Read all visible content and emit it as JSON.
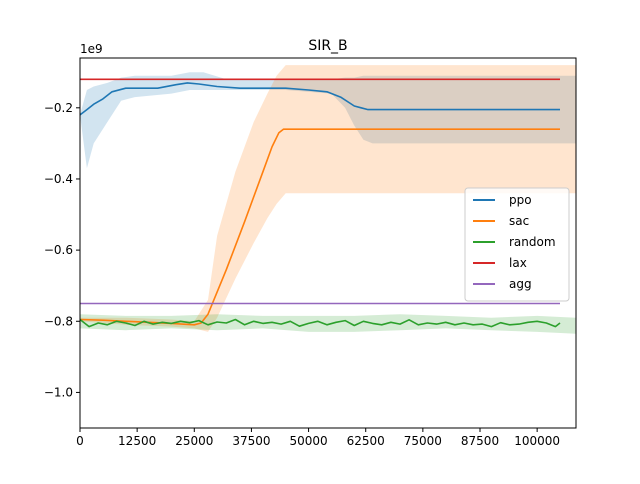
{
  "chart_data": {
    "type": "line",
    "title": "SIR_B",
    "xlabel": "",
    "ylabel": "",
    "y_offset_label": "1e9",
    "y_scale_factor": 1000000000,
    "xlim": [
      0,
      108500
    ],
    "ylim": [
      -1.1,
      -0.06
    ],
    "x_ticks": [
      0,
      12500,
      25000,
      37500,
      50000,
      62500,
      75000,
      87500,
      100000
    ],
    "x_tick_labels": [
      "0",
      "12500",
      "25000",
      "37500",
      "50000",
      "62500",
      "75000",
      "87500",
      "100000"
    ],
    "y_ticks": [
      -1.0,
      -0.8,
      -0.6,
      -0.4,
      -0.2
    ],
    "y_tick_labels": [
      "−1.0",
      "−0.8",
      "−0.6",
      "−0.4",
      "−0.2"
    ],
    "grid": false,
    "legend_position": "center-right",
    "series": [
      {
        "name": "ppo",
        "color": "#1f77b4",
        "x": [
          0,
          1500,
          3000,
          5000,
          7000,
          10000,
          17000,
          21000,
          23500,
          26000,
          30000,
          35000,
          45000,
          50000,
          54000,
          57000,
          60000,
          61500,
          63000,
          80000,
          105000
        ],
        "y": [
          -0.22,
          -0.205,
          -0.19,
          -0.175,
          -0.155,
          -0.145,
          -0.145,
          -0.135,
          -0.13,
          -0.133,
          -0.14,
          -0.145,
          -0.145,
          -0.15,
          -0.155,
          -0.17,
          -0.195,
          -0.2,
          -0.205,
          -0.205,
          -0.205
        ],
        "band_x": [
          0,
          1500,
          3000,
          6000,
          9000,
          12000,
          20000,
          24000,
          27000,
          32000,
          45000,
          55000,
          58000,
          60000,
          62000,
          64000,
          108500
        ],
        "band_lower": [
          -0.22,
          -0.37,
          -0.3,
          -0.24,
          -0.18,
          -0.17,
          -0.16,
          -0.15,
          -0.15,
          -0.15,
          -0.15,
          -0.16,
          -0.2,
          -0.25,
          -0.29,
          -0.3,
          -0.3
        ],
        "band_upper": [
          -0.22,
          -0.15,
          -0.14,
          -0.13,
          -0.115,
          -0.11,
          -0.11,
          -0.1,
          -0.1,
          -0.12,
          -0.12,
          -0.12,
          -0.115,
          -0.115,
          -0.11,
          -0.11,
          -0.11
        ]
      },
      {
        "name": "sac",
        "color": "#ff7f0e",
        "x": [
          0,
          5000,
          10000,
          15000,
          20000,
          25000,
          26500,
          28000,
          32000,
          36000,
          40000,
          42000,
          43500,
          44500,
          60000,
          80000,
          105000
        ],
        "y": [
          -0.795,
          -0.797,
          -0.8,
          -0.803,
          -0.806,
          -0.81,
          -0.805,
          -0.78,
          -0.655,
          -0.52,
          -0.38,
          -0.31,
          -0.27,
          -0.26,
          -0.26,
          -0.26,
          -0.26
        ],
        "band_x": [
          0,
          10000,
          20000,
          25000,
          28000,
          30000,
          34000,
          38000,
          41000,
          43000,
          45000,
          46000,
          50000,
          80000,
          108500
        ],
        "band_lower": [
          -0.8,
          -0.81,
          -0.815,
          -0.82,
          -0.83,
          -0.79,
          -0.68,
          -0.58,
          -0.51,
          -0.47,
          -0.44,
          -0.44,
          -0.44,
          -0.44,
          -0.44
        ],
        "band_upper": [
          -0.79,
          -0.79,
          -0.795,
          -0.8,
          -0.74,
          -0.56,
          -0.38,
          -0.24,
          -0.16,
          -0.11,
          -0.08,
          -0.08,
          -0.08,
          -0.08,
          -0.08
        ]
      },
      {
        "name": "random",
        "color": "#2ca02c",
        "x": [
          0,
          2000,
          4000,
          6000,
          8000,
          10000,
          12000,
          14000,
          16000,
          18000,
          20000,
          22000,
          24000,
          26000,
          28000,
          30000,
          32000,
          34000,
          36000,
          38000,
          40000,
          42000,
          44000,
          46000,
          48000,
          50000,
          52000,
          54000,
          56000,
          58000,
          60000,
          62000,
          64000,
          66000,
          68000,
          70000,
          72000,
          74000,
          76000,
          78000,
          80000,
          82000,
          84000,
          86000,
          88000,
          90000,
          92000,
          94000,
          96000,
          98000,
          100000,
          102000,
          104000,
          105000
        ],
        "y": [
          -0.795,
          -0.815,
          -0.805,
          -0.81,
          -0.8,
          -0.805,
          -0.812,
          -0.8,
          -0.808,
          -0.803,
          -0.806,
          -0.8,
          -0.804,
          -0.798,
          -0.81,
          -0.802,
          -0.805,
          -0.795,
          -0.81,
          -0.8,
          -0.806,
          -0.803,
          -0.808,
          -0.8,
          -0.814,
          -0.806,
          -0.8,
          -0.81,
          -0.803,
          -0.798,
          -0.812,
          -0.8,
          -0.806,
          -0.81,
          -0.803,
          -0.808,
          -0.796,
          -0.81,
          -0.805,
          -0.808,
          -0.803,
          -0.81,
          -0.805,
          -0.81,
          -0.808,
          -0.815,
          -0.804,
          -0.81,
          -0.808,
          -0.803,
          -0.8,
          -0.805,
          -0.815,
          -0.805
        ],
        "band_x": [
          0,
          10000,
          20000,
          30000,
          40000,
          50000,
          60000,
          70000,
          80000,
          90000,
          100000,
          108500
        ],
        "band_lower": [
          -0.82,
          -0.825,
          -0.82,
          -0.825,
          -0.82,
          -0.83,
          -0.83,
          -0.825,
          -0.82,
          -0.825,
          -0.83,
          -0.835
        ],
        "band_upper": [
          -0.78,
          -0.785,
          -0.785,
          -0.78,
          -0.785,
          -0.785,
          -0.785,
          -0.78,
          -0.785,
          -0.79,
          -0.785,
          -0.79
        ]
      },
      {
        "name": "lax",
        "color": "#d62728",
        "x": [
          0,
          105000
        ],
        "y": [
          -0.12,
          -0.12
        ]
      },
      {
        "name": "agg",
        "color": "#9467bd",
        "x": [
          0,
          105000
        ],
        "y": [
          -0.75,
          -0.75
        ]
      }
    ]
  }
}
